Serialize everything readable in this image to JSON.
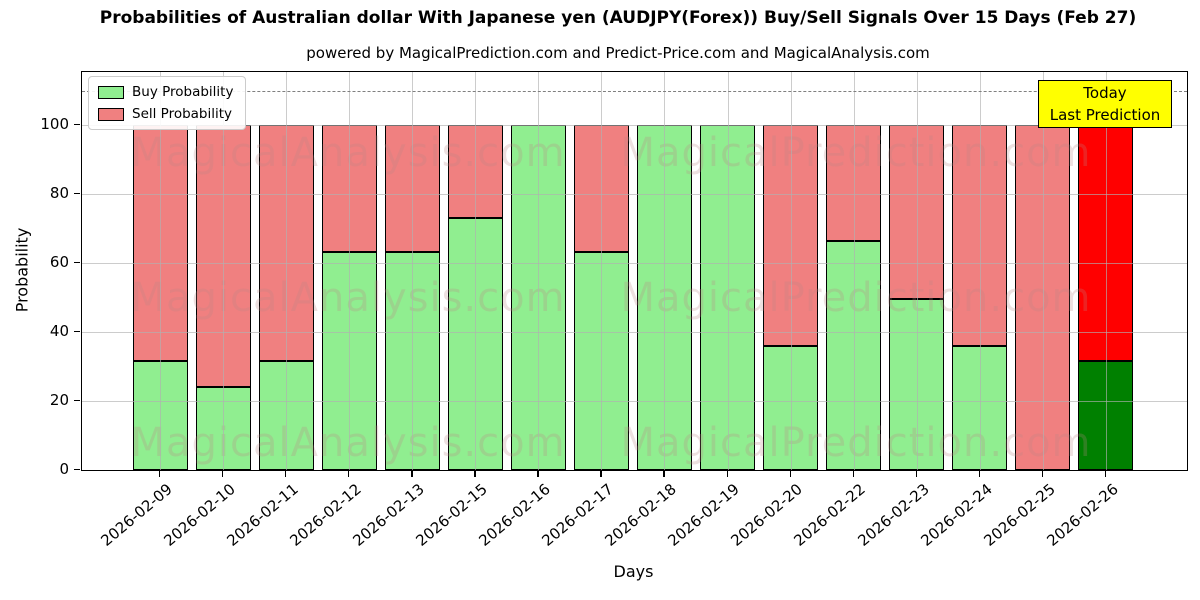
{
  "title": "Probabilities of Australian dollar With Japanese yen (AUDJPY(Forex)) Buy/Sell Signals Over 15 Days (Feb 27)",
  "subtitle": "powered by MagicalPrediction.com and Predict-Price.com and MagicalAnalysis.com",
  "legend": {
    "buy_label": "Buy Probability",
    "sell_label": "Sell Probability"
  },
  "annotation": {
    "line1": "Today",
    "line2": "Last Prediction"
  },
  "axes": {
    "xlabel": "Days",
    "ylabel": "Probability"
  },
  "watermarks": {
    "left_text": "MagicalAnalysis.com",
    "right_text": "MagicalPrediction.com"
  },
  "colors": {
    "buy": "#90ee90",
    "sell": "#f08080",
    "today_buy": "#008000",
    "today_sell": "#ff0000",
    "annotation_bg": "#ffff00",
    "watermark": "#bc8787",
    "grid": "#b0b0b0",
    "dashed_line": "#7f7f7f"
  },
  "chart_data": {
    "type": "bar",
    "stacked": true,
    "title": "Probabilities of Australian dollar With Japanese yen (AUDJPY(Forex)) Buy/Sell Signals Over 15 Days (Feb 27)",
    "xlabel": "Days",
    "ylabel": "Probability",
    "ylim": [
      0,
      115.4
    ],
    "yticks": [
      0,
      20,
      40,
      60,
      80,
      100
    ],
    "grid": true,
    "legend_position": "upper left",
    "dashed_reference_line_y": 110,
    "categories": [
      "2026-02-09",
      "2026-02-10",
      "2026-02-11",
      "2026-02-12",
      "2026-02-13",
      "2026-02-15",
      "2026-02-16",
      "2026-02-17",
      "2026-02-18",
      "2026-02-19",
      "2026-02-20",
      "2026-02-22",
      "2026-02-23",
      "2026-02-24",
      "2026-02-25",
      "2026-02-26"
    ],
    "series": [
      {
        "name": "Buy Probability",
        "color": "#90ee90",
        "values": [
          31.6,
          24,
          31.6,
          63.3,
          63.3,
          73,
          100,
          63.3,
          100,
          100,
          36,
          66.5,
          49.5,
          36,
          0,
          31.6
        ]
      },
      {
        "name": "Sell Probability",
        "color": "#f08080",
        "values": [
          68.4,
          76,
          68.4,
          36.7,
          36.7,
          27,
          0,
          36.7,
          0,
          0,
          64,
          33.5,
          50.5,
          64,
          100,
          68.4
        ]
      }
    ],
    "today_bar": {
      "index": 15,
      "category": "2026-02-26",
      "buy_color": "#008000",
      "sell_color": "#ff0000"
    }
  }
}
